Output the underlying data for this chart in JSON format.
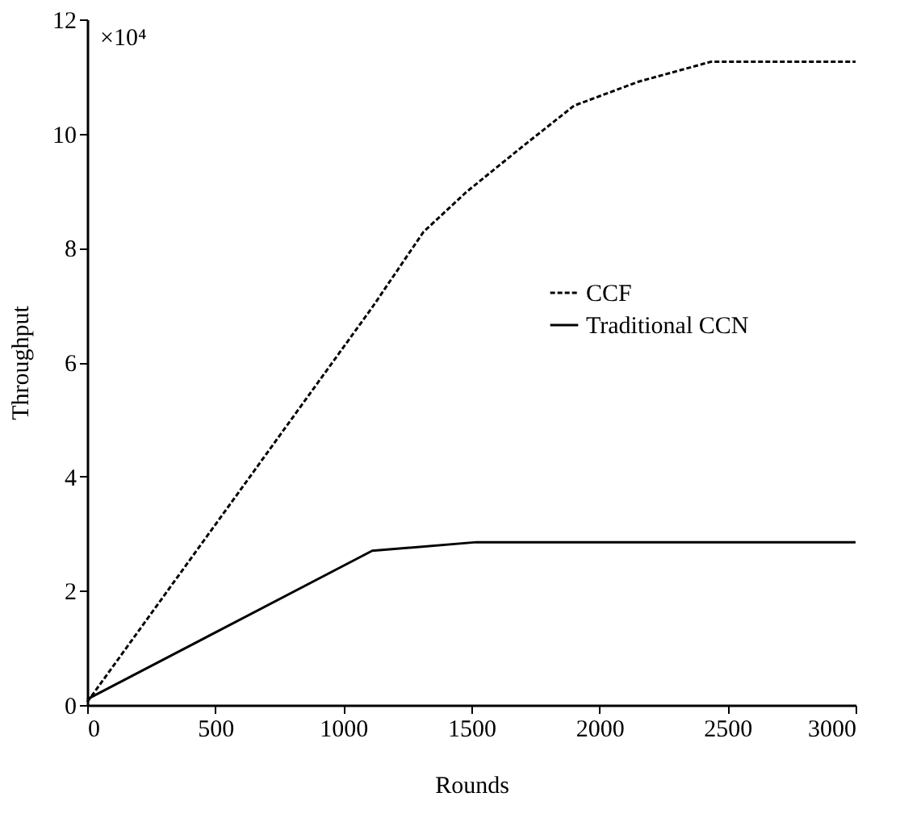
{
  "chart_data": {
    "type": "line",
    "xlabel": "Rounds",
    "ylabel": "Throughput",
    "xlim": [
      0,
      3000
    ],
    "xticks": [
      0,
      500,
      1000,
      1500,
      2000,
      2500,
      3000
    ],
    "ylim": [
      0,
      12
    ],
    "yticks": [
      0,
      2,
      4,
      6,
      8,
      10,
      12
    ],
    "annotations": [
      "×10⁴"
    ],
    "grid": false,
    "legend": "right",
    "marker": "none",
    "series": [
      {
        "name": "CCF",
        "color": "#000000",
        "line_style": "dotted",
        "x": [
          0,
          1113,
          1313,
          1481,
          1690,
          1901,
          2153,
          2437,
          3000
        ],
        "values": [
          0.05,
          6.96,
          8.28,
          8.98,
          9.74,
          10.49,
          10.91,
          11.26,
          11.26
        ]
      },
      {
        "name": "Traditional CCN",
        "color": "#000000",
        "line_style": "solid",
        "x": [
          0,
          1113,
          1520,
          3000
        ],
        "values": [
          0.1,
          2.7,
          2.85,
          2.85
        ]
      }
    ]
  }
}
